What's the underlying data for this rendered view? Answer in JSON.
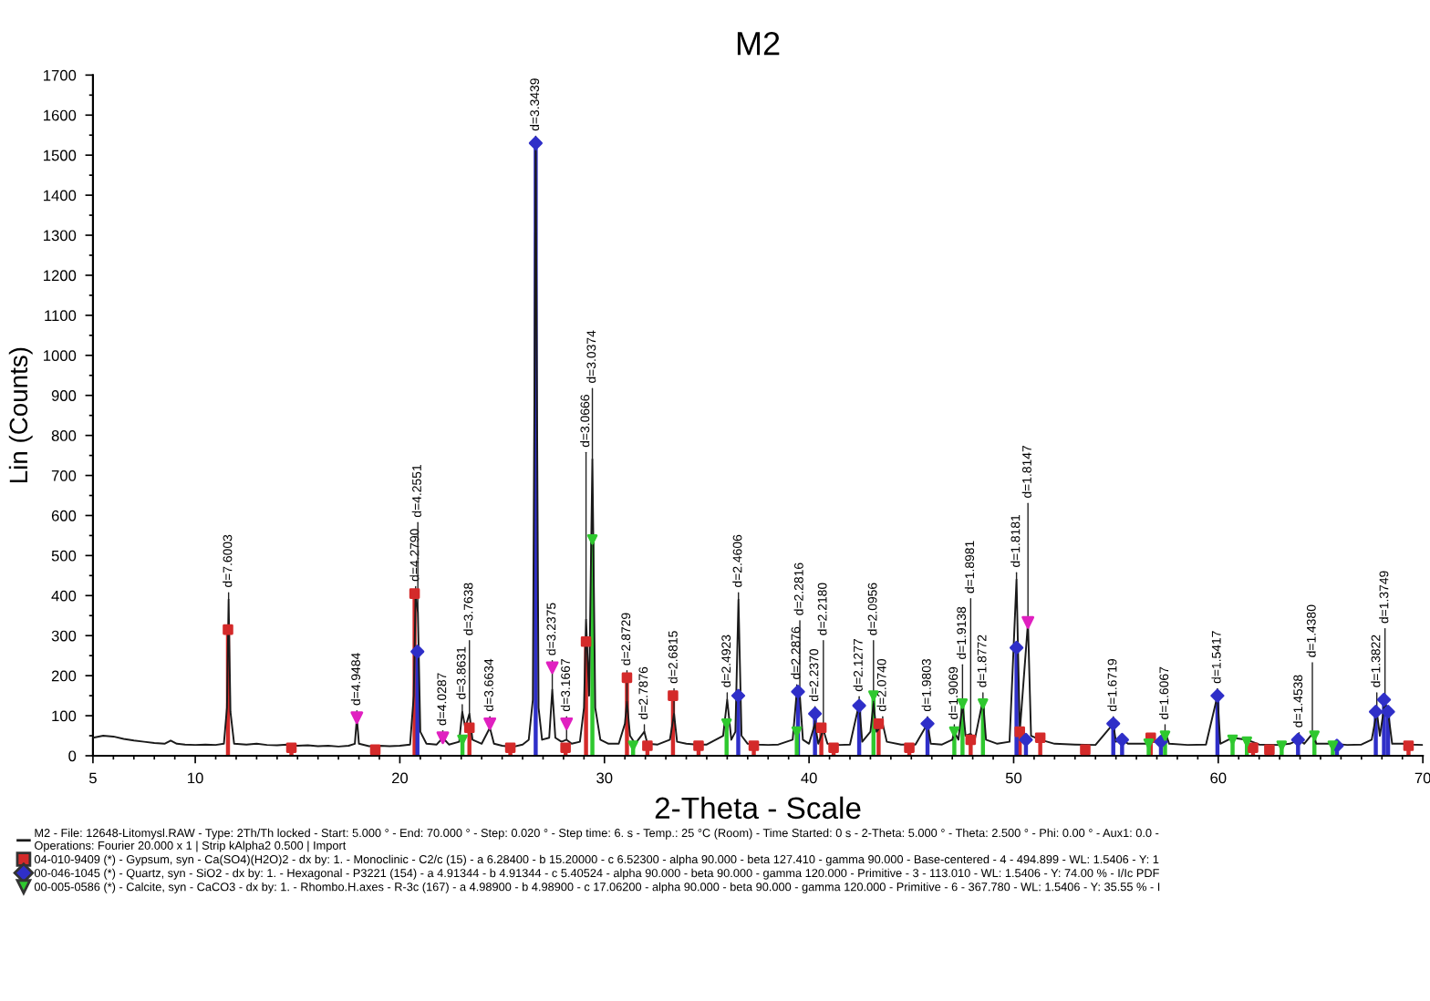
{
  "chart_data": {
    "type": "line",
    "title": "M2",
    "xlabel": "2-Theta - Scale",
    "ylabel": "Lin (Counts)",
    "xlim": [
      5,
      70
    ],
    "ylim": [
      0,
      1700
    ],
    "xticks": [
      5,
      {
        "value": 6,
        "label": null
      },
      {
        "value": 7,
        "label": null
      },
      {
        "value": 8,
        "label": null
      },
      {
        "value": 9,
        "label": null
      },
      10,
      {
        "value": 11,
        "label": null
      },
      {
        "value": 12,
        "label": null
      },
      {
        "value": 13,
        "label": null
      },
      {
        "value": 14,
        "label": null
      },
      {
        "value": 15,
        "label": null
      },
      {
        "value": 16,
        "label": null
      },
      {
        "value": 17,
        "label": null
      },
      {
        "value": 18,
        "label": null
      },
      {
        "value": 19,
        "label": null
      },
      20,
      {
        "value": 21,
        "label": null
      },
      {
        "value": 22,
        "label": null
      },
      {
        "value": 23,
        "label": null
      },
      {
        "value": 24,
        "label": null
      },
      {
        "value": 25,
        "label": null
      },
      {
        "value": 26,
        "label": null
      },
      {
        "value": 27,
        "label": null
      },
      {
        "value": 28,
        "label": null
      },
      {
        "value": 29,
        "label": null
      },
      30,
      {
        "value": 31,
        "label": null
      },
      {
        "value": 32,
        "label": null
      },
      {
        "value": 33,
        "label": null
      },
      {
        "value": 34,
        "label": null
      },
      {
        "value": 35,
        "label": null
      },
      {
        "value": 36,
        "label": null
      },
      {
        "value": 37,
        "label": null
      },
      {
        "value": 38,
        "label": null
      },
      {
        "value": 39,
        "label": null
      },
      40,
      {
        "value": 41,
        "label": null
      },
      {
        "value": 42,
        "label": null
      },
      {
        "value": 43,
        "label": null
      },
      {
        "value": 44,
        "label": null
      },
      {
        "value": 45,
        "label": null
      },
      {
        "value": 46,
        "label": null
      },
      {
        "value": 47,
        "label": null
      },
      {
        "value": 48,
        "label": null
      },
      {
        "value": 49,
        "label": null
      },
      50,
      {
        "value": 51,
        "label": null
      },
      {
        "value": 52,
        "label": null
      },
      {
        "value": 53,
        "label": null
      },
      {
        "value": 54,
        "label": null
      },
      {
        "value": 55,
        "label": null
      },
      {
        "value": 56,
        "label": null
      },
      {
        "value": 57,
        "label": null
      },
      {
        "value": 58,
        "label": null
      },
      {
        "value": 59,
        "label": null
      },
      60,
      {
        "value": 61,
        "label": null
      },
      {
        "value": 62,
        "label": null
      },
      {
        "value": 63,
        "label": null
      },
      {
        "value": 64,
        "label": null
      },
      {
        "value": 65,
        "label": null
      },
      {
        "value": 66,
        "label": null
      },
      {
        "value": 67,
        "label": null
      },
      {
        "value": 68,
        "label": null
      },
      {
        "value": 69,
        "label": null
      },
      70
    ],
    "yticks": [
      0,
      {
        "value": 50,
        "label": null
      },
      100,
      {
        "value": 150,
        "label": null
      },
      200,
      {
        "value": 250,
        "label": null
      },
      300,
      {
        "value": 350,
        "label": null
      },
      400,
      {
        "value": 450,
        "label": null
      },
      500,
      {
        "value": 550,
        "label": null
      },
      600,
      {
        "value": 650,
        "label": null
      },
      700,
      {
        "value": 750,
        "label": null
      },
      800,
      {
        "value": 850,
        "label": null
      },
      900,
      {
        "value": 950,
        "label": null
      },
      1000,
      {
        "value": 1050,
        "label": null
      },
      1100,
      {
        "value": 1150,
        "label": null
      },
      1200,
      {
        "value": 1250,
        "label": null
      },
      1300,
      {
        "value": 1350,
        "label": null
      },
      1400,
      {
        "value": 1450,
        "label": null
      },
      1500,
      {
        "value": 1550,
        "label": null
      },
      1600,
      {
        "value": 1650,
        "label": null
      },
      1700
    ],
    "grid": false,
    "legend": "bottom",
    "series": [
      {
        "name": "M2 - File: 12648-Litomysl.RAW - Type: 2Th/Th locked - Start: 5.000 ° - End: 70.000 ° - Step: 0.020 ° - Step time: 6. s - Temp.: 25 °C (Room) - Time Started: 0 s - 2-Theta: 5.000 ° - Theta: 2.500 ° - Phi: 0.00 ° - Aux1: 0.0 -\nOperations: Fourier 20.000 x 1 | Strip kAlpha2 0.500 | Import",
        "color": "#1a1a1a",
        "x": [
          5,
          5.5,
          6,
          6.5,
          7,
          7.5,
          8,
          8.5,
          8.8,
          9.1,
          9.5,
          10,
          10.5,
          11,
          11.4,
          11.55,
          11.63,
          11.72,
          11.9,
          12.5,
          13,
          13.5,
          14,
          14.5,
          15,
          15.5,
          16,
          16.5,
          17,
          17.5,
          17.8,
          17.9,
          18.0,
          18.5,
          19,
          19.5,
          20,
          20.5,
          20.68,
          20.77,
          20.88,
          21.0,
          21.3,
          21.8,
          22.1,
          22.4,
          22.9,
          23.05,
          23.2,
          23.4,
          23.55,
          24,
          24.4,
          24.6,
          25,
          25.5,
          26,
          26.3,
          26.5,
          26.64,
          26.78,
          26.95,
          27.3,
          27.45,
          27.6,
          27.9,
          28.15,
          28.4,
          28.8,
          29.0,
          29.1,
          29.25,
          29.41,
          29.55,
          29.8,
          30.2,
          30.7,
          31.0,
          31.1,
          31.25,
          31.5,
          31.95,
          32.1,
          32.6,
          33.2,
          33.4,
          33.55,
          34,
          34.5,
          35,
          35.8,
          36.0,
          36.2,
          36.4,
          36.55,
          36.7,
          37,
          37.5,
          38,
          38.5,
          39.2,
          39.4,
          39.55,
          39.7,
          40.0,
          40.29,
          40.45,
          40.7,
          40.9,
          41.5,
          42,
          42.45,
          42.6,
          43.0,
          43.15,
          43.3,
          43.6,
          43.8,
          44.5,
          45.2,
          45.79,
          45.95,
          46.5,
          47.0,
          47.1,
          47.3,
          47.5,
          47.65,
          47.9,
          48.1,
          48.5,
          48.65,
          49.2,
          49.8,
          50.14,
          50.3,
          50.7,
          50.85,
          51.3,
          52,
          53,
          54,
          54.87,
          55.0,
          55.3,
          55.6,
          56.5,
          56.7,
          57.0,
          57.4,
          57.6,
          58.5,
          59.4,
          59.96,
          60.1,
          60.7,
          61.4,
          62,
          63,
          63.5,
          63.95,
          64.2,
          64.6,
          64.8,
          65.6,
          66.3,
          67,
          67.5,
          67.75,
          67.9,
          68.15,
          68.3,
          68.5,
          69,
          69.5,
          70
        ],
        "values": [
          45,
          50,
          48,
          42,
          38,
          35,
          32,
          30,
          38,
          30,
          28,
          27,
          28,
          27,
          30,
          120,
          390,
          110,
          30,
          28,
          30,
          27,
          26,
          28,
          25,
          26,
          24,
          25,
          23,
          25,
          30,
          95,
          30,
          24,
          25,
          24,
          25,
          28,
          150,
          405,
          360,
          60,
          30,
          28,
          45,
          28,
          35,
          110,
          70,
          105,
          40,
          30,
          70,
          30,
          25,
          22,
          28,
          40,
          140,
          1510,
          120,
          40,
          45,
          165,
          45,
          35,
          40,
          30,
          35,
          120,
          340,
          150,
          740,
          120,
          40,
          30,
          30,
          80,
          135,
          50,
          30,
          60,
          30,
          28,
          40,
          105,
          35,
          30,
          28,
          28,
          50,
          140,
          40,
          60,
          390,
          50,
          30,
          28,
          27,
          28,
          40,
          160,
          150,
          40,
          30,
          80,
          30,
          65,
          30,
          27,
          28,
          130,
          35,
          60,
          130,
          60,
          80,
          35,
          28,
          28,
          80,
          30,
          28,
          40,
          60,
          40,
          130,
          50,
          55,
          40,
          140,
          40,
          30,
          35,
          440,
          60,
          333,
          50,
          40,
          30,
          28,
          27,
          80,
          35,
          40,
          30,
          30,
          45,
          35,
          60,
          30,
          27,
          28,
          150,
          30,
          45,
          40,
          28,
          27,
          30,
          40,
          30,
          55,
          30,
          30,
          27,
          28,
          40,
          110,
          50,
          135,
          110,
          30,
          30,
          28,
          27
        ]
      },
      {
        "type": "lollipop",
        "marker": "square",
        "name": "04-010-9409 (*) - Gypsum, syn - Ca(SO4)(H2O)2 - dx by: 1. - Monoclinic - C2/c (15) - a 6.28400 - b 15.20000 - c 6.52300 - alpha 90.000 - beta 127.410 - gamma 90.000 - Base-centered - 4 - 494.899 - WL: 1.5406 - Y: 1",
        "color": "#d42a2a",
        "x": [
          11.6,
          14.7,
          18.8,
          20.72,
          23.4,
          25.4,
          28.1,
          29.1,
          31.1,
          32.1,
          33.35,
          34.6,
          37.3,
          40.6,
          41.2,
          43.4,
          44.9,
          47.9,
          50.3,
          51.3,
          53.5,
          56.7,
          61.7,
          62.5,
          69.3
        ],
        "values": [
          315,
          20,
          15,
          405,
          70,
          20,
          20,
          285,
          195,
          25,
          150,
          25,
          25,
          70,
          20,
          80,
          20,
          40,
          60,
          45,
          15,
          45,
          20,
          15,
          25
        ]
      },
      {
        "type": "lollipop",
        "marker": "diamond",
        "name": "00-046-1045 (*) - Quartz, syn - SiO2 - dx by: 1. - Hexagonal - P3221 (154) - a 4.91344 - b 4.91344 - c 5.40524 - alpha 90.000 - beta 90.000 - gamma 120.000 - Primitive - 3 - 113.010 - WL: 1.5406 - Y: 74.00 % - I/Ic PDF",
        "color": "#2f2fc8",
        "x": [
          20.86,
          26.64,
          36.54,
          39.46,
          40.29,
          42.45,
          45.79,
          50.14,
          50.6,
          54.87,
          55.3,
          57.2,
          59.96,
          63.9,
          65.8,
          67.7,
          68.1,
          68.3
        ],
        "values": [
          260,
          1530,
          150,
          160,
          105,
          125,
          80,
          270,
          40,
          80,
          40,
          35,
          150,
          40,
          25,
          110,
          140,
          110
        ]
      },
      {
        "type": "lollipop",
        "marker": "triangle",
        "name": "00-005-0586 (*) - Calcite, syn - CaCO3 - dx by: 1. - Rhombo.H.axes - R-3c (167) - a 4.98900 - b 4.98900 - c 17.06200 - alpha 90.000 - beta 90.000 - gamma 120.000 - Primitive - 6 - 367.780 - WL: 1.5406 - Y: 35.55 % - I",
        "color": "#2fc82f",
        "x": [
          23.06,
          29.41,
          31.4,
          35.97,
          39.4,
          43.15,
          47.1,
          47.5,
          48.5,
          56.6,
          57.4,
          60.7,
          61.4,
          63.1,
          64.7,
          65.6
        ],
        "values": [
          40,
          540,
          25,
          80,
          60,
          150,
          60,
          130,
          130,
          30,
          50,
          40,
          35,
          25,
          50,
          25
        ]
      },
      {
        "type": "scatter",
        "marker": "triangle",
        "color": "#e020c0",
        "x": [
          17.9,
          22.1,
          24.4,
          27.45,
          28.15,
          50.7
        ],
        "values": [
          95,
          45,
          80,
          220,
          80,
          333
        ]
      }
    ],
    "annotations": [
      {
        "text": "d=7.6003",
        "x": 11.63,
        "y": 390
      },
      {
        "text": "d=4.9484",
        "x": 17.9,
        "y": 95
      },
      {
        "text": "d=4.2790",
        "x": 20.77,
        "y": 405
      },
      {
        "text": "d=4.2551",
        "x": 20.88,
        "y": 360
      },
      {
        "text": "d=4.0287",
        "x": 22.1,
        "y": 45
      },
      {
        "text": "d=3.8631",
        "x": 23.05,
        "y": 110
      },
      {
        "text": "d=3.7638",
        "x": 23.4,
        "y": 105
      },
      {
        "text": "d=3.6634",
        "x": 24.4,
        "y": 70
      },
      {
        "text": "d=3.3439",
        "x": 26.64,
        "y": 1510
      },
      {
        "text": "d=3.2375",
        "x": 27.45,
        "y": 165
      },
      {
        "text": "d=3.1667",
        "x": 28.15,
        "y": 40
      },
      {
        "text": "d=3.0666",
        "x": 29.1,
        "y": 340
      },
      {
        "text": "d=3.0374",
        "x": 29.41,
        "y": 740
      },
      {
        "text": "d=2.8729",
        "x": 31.1,
        "y": 135
      },
      {
        "text": "d=2.7876",
        "x": 31.95,
        "y": 60
      },
      {
        "text": "d=2.6815",
        "x": 33.4,
        "y": 105
      },
      {
        "text": "d=2.4923",
        "x": 36.0,
        "y": 140
      },
      {
        "text": "d=2.4606",
        "x": 36.55,
        "y": 390
      },
      {
        "text": "d=2.2876",
        "x": 39.4,
        "y": 160
      },
      {
        "text": "d=2.2816",
        "x": 39.55,
        "y": 150
      },
      {
        "text": "d=2.2370",
        "x": 40.29,
        "y": 80
      },
      {
        "text": "d=2.2180",
        "x": 40.7,
        "y": 65
      },
      {
        "text": "d=2.1277",
        "x": 42.45,
        "y": 130
      },
      {
        "text": "d=2.0956",
        "x": 43.15,
        "y": 130
      },
      {
        "text": "d=2.0740",
        "x": 43.6,
        "y": 80
      },
      {
        "text": "d=1.9803",
        "x": 45.79,
        "y": 80
      },
      {
        "text": "d=1.9069",
        "x": 47.1,
        "y": 60
      },
      {
        "text": "d=1.9138",
        "x": 47.5,
        "y": 130
      },
      {
        "text": "d=1.8981",
        "x": 47.9,
        "y": 55
      },
      {
        "text": "d=1.8772",
        "x": 48.5,
        "y": 140
      },
      {
        "text": "d=1.8181",
        "x": 50.14,
        "y": 440
      },
      {
        "text": "d=1.8147",
        "x": 50.7,
        "y": 333
      },
      {
        "text": "d=1.6719",
        "x": 54.87,
        "y": 80
      },
      {
        "text": "d=1.6067",
        "x": 57.4,
        "y": 60
      },
      {
        "text": "d=1.5417",
        "x": 59.96,
        "y": 150
      },
      {
        "text": "d=1.4538",
        "x": 63.95,
        "y": 40
      },
      {
        "text": "d=1.4380",
        "x": 64.6,
        "y": 55
      },
      {
        "text": "d=1.3822",
        "x": 67.75,
        "y": 110
      },
      {
        "text": "d=1.3749",
        "x": 68.15,
        "y": 135
      }
    ]
  }
}
